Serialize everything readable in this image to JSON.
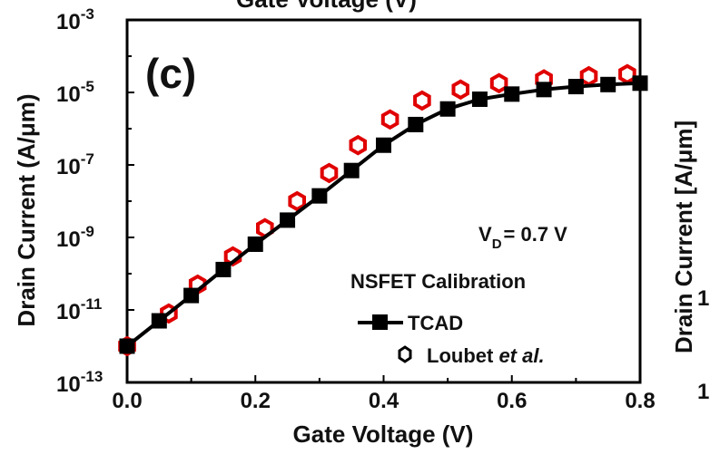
{
  "chart_data": {
    "type": "line",
    "panel_label": "(c)",
    "xlabel": "Gate Voltage (V)",
    "ylabel": "Drain Current (A/μm)",
    "top_label_clipped": "Gate Voltage (V)",
    "right_label_clipped": "Drain Current [A/μm]",
    "right_edge_ticks": [
      "1",
      "1"
    ],
    "x_ticks": [
      "0.0",
      "0.2",
      "0.4",
      "0.6",
      "0.8"
    ],
    "y_ticks": [
      {
        "base": "10",
        "exp": "-3"
      },
      {
        "base": "10",
        "exp": "-5"
      },
      {
        "base": "10",
        "exp": "-7"
      },
      {
        "base": "10",
        "exp": "-9"
      },
      {
        "base": "10",
        "exp": "-11"
      },
      {
        "base": "10",
        "exp": "-13"
      }
    ],
    "xlim": [
      0,
      0.8
    ],
    "ylim": [
      1e-13,
      0.001
    ],
    "yscale": "log",
    "annotations": {
      "vd_label_main": "V",
      "vd_label_sub": "D",
      "vd_label_rest": "= 0.7 V",
      "calibration_title": "NSFET Calibration",
      "legend_tcad": "TCAD",
      "legend_exp_prefix": "Loubet ",
      "legend_exp_italic": "et al."
    },
    "series": [
      {
        "name": "TCAD",
        "color": "#000000",
        "marker": "square",
        "x": [
          0.0,
          0.05,
          0.1,
          0.15,
          0.2,
          0.25,
          0.3,
          0.35,
          0.4,
          0.45,
          0.5,
          0.55,
          0.6,
          0.65,
          0.7,
          0.75,
          0.8
        ],
        "y": [
          1e-12,
          5e-12,
          2.5e-11,
          1.3e-10,
          6.5e-10,
          3e-09,
          1.4e-08,
          7e-08,
          3.5e-07,
          1.3e-06,
          3.5e-06,
          6.5e-06,
          9e-06,
          1.2e-05,
          1.45e-05,
          1.65e-05,
          1.8e-05
        ]
      },
      {
        "name": "Loubet et al.",
        "color": "#e00000",
        "marker": "hexagon",
        "x": [
          0.0,
          0.065,
          0.11,
          0.165,
          0.215,
          0.265,
          0.315,
          0.36,
          0.41,
          0.46,
          0.52,
          0.58,
          0.65,
          0.72,
          0.78
        ],
        "y": [
          1e-12,
          8e-12,
          5e-11,
          3e-10,
          1.8e-09,
          1e-08,
          6e-08,
          3.5e-07,
          1.8e-06,
          6e-06,
          1.2e-05,
          1.8e-05,
          2.3e-05,
          2.8e-05,
          3.2e-05
        ]
      }
    ]
  }
}
